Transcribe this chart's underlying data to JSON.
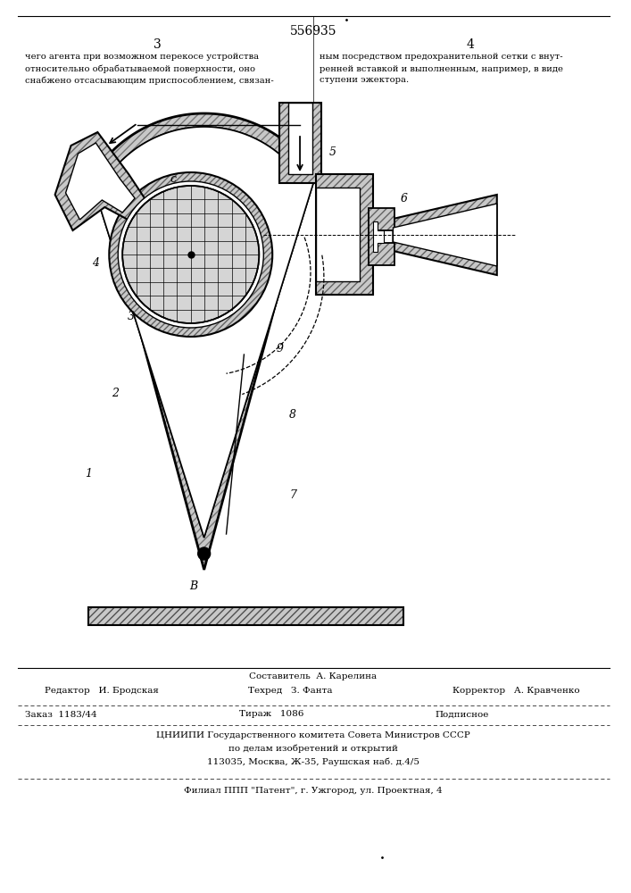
{
  "patent_number": "556935",
  "page_left": "3",
  "page_right": "4",
  "text_left": "чего агента при возможном перекосе устройства\nотносительно обрабатываемой поверхности, оно\nснабжено отсасывающим приспособлением, связан-",
  "text_right": "ным посредством предохранительной сетки с внут-\nренней вставкой и выполненным, например, в виде\nступени эжектора.",
  "editor_line": "Редактор   И. Бродская",
  "composer_line": "Составитель  А. Карелина",
  "techred_line": "Техред   З. Фанта",
  "corrector_line": "Корректор   А. Кравченко",
  "order_line": "Заказ  1183/44",
  "circulation_line": "Тираж   1086",
  "subscription_line": "Подписное",
  "org_line1": "ЦНИИПИ Государственного комитета Совета Министров СССР",
  "org_line2": "по делам изобретений и открытий",
  "org_line3": "113035, Москва, Ж-35, Раушская наб. д.4/5",
  "branch_line": "Филиал ППП \"Патент\", г. Ужгород, ул. Проектная, 4",
  "bg_color": "#ffffff",
  "text_color": "#000000"
}
